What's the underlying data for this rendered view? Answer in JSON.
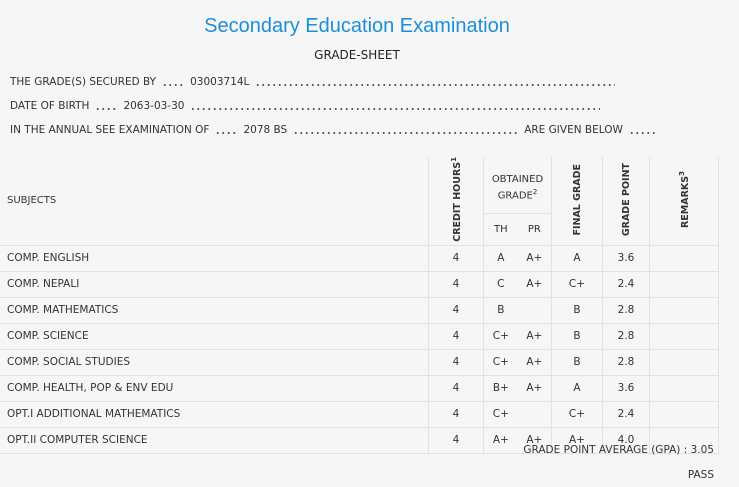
{
  "header": {
    "title": "Secondary Education Examination",
    "subtitle": "GRADE-SHEET"
  },
  "info": [
    {
      "label": "THE GRADE(S) SECURED BY",
      "value": "03003714L"
    },
    {
      "label": "DATE OF BIRTH",
      "value": "2063-03-30"
    },
    {
      "label": "IN THE ANNUAL SEE EXAMINATION OF",
      "value": "2078 BS",
      "suffix": "ARE GIVEN BELOW"
    }
  ],
  "table": {
    "headers": {
      "subjects": "SUBJECTS",
      "credit_hours": "CREDIT HOURS",
      "credit_hours_note": "1",
      "obtained_grade": "OBTAINED GRADE",
      "obtained_grade_note": "2",
      "th": "TH",
      "pr": "PR",
      "final_grade": "FINAL GRADE",
      "grade_point": "GRADE POINT",
      "remarks": "REMARKS",
      "remarks_note": "3"
    },
    "rows": [
      [
        "COMP. ENGLISH",
        "4",
        "A",
        "A+",
        "A",
        "3.6"
      ],
      [
        "COMP. NEPALI",
        "4",
        "C",
        "A+",
        "C+",
        "2.4"
      ],
      [
        "COMP. MATHEMATICS",
        "4",
        "B",
        null,
        "B",
        "2.8"
      ],
      [
        "COMP. SCIENCE",
        "4",
        "C+",
        "A+",
        "B",
        "2.8"
      ],
      [
        "COMP. SOCIAL STUDIES",
        "4",
        "C+",
        "A+",
        "B",
        "2.8"
      ],
      [
        "COMP. HEALTH, POP & ENV EDU",
        "4",
        "B+",
        "A+",
        "A",
        "3.6"
      ],
      [
        "OPT.I ADDITIONAL MATHEMATICS",
        "4",
        "C+",
        null,
        "C+",
        "2.4"
      ],
      [
        "OPT.II COMPUTER SCIENCE",
        "4",
        "A+",
        "A+",
        "A+",
        "4.0"
      ]
    ]
  },
  "summary": {
    "gpa_label": "GRADE POINT AVERAGE (GPA) :",
    "gpa": "3.05",
    "result": "PASS"
  }
}
